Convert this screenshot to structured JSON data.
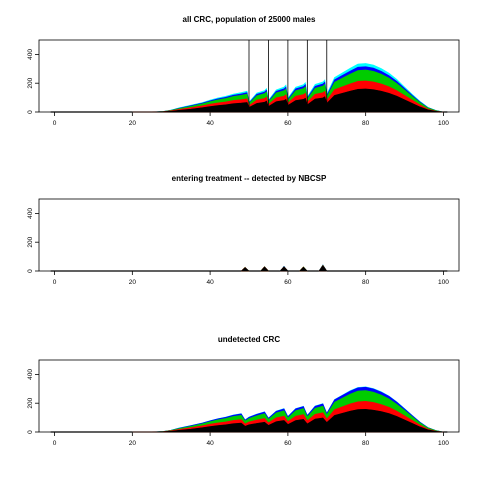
{
  "chart_data": [
    {
      "id": "all",
      "type": "area",
      "title": "all CRC, population of 25000 males",
      "xlabel": "",
      "ylabel": "",
      "xlim": [
        -4,
        104
      ],
      "ylim": [
        0,
        500
      ],
      "xticks": [
        0,
        20,
        40,
        60,
        80,
        100
      ],
      "yticks": [
        0,
        200,
        400
      ],
      "stacked": true,
      "colors": [
        "#000000",
        "#ff0000",
        "#00cc00",
        "#0000ff",
        "#00ffff"
      ],
      "x": [
        20,
        25,
        28,
        30,
        32,
        35,
        38,
        40,
        42,
        44,
        46,
        48,
        49.5,
        50,
        52,
        54,
        54.5,
        55,
        57,
        59,
        59.5,
        60,
        62,
        64,
        64.5,
        65,
        67,
        69,
        69.5,
        70,
        72,
        74,
        76,
        78,
        80,
        82,
        84,
        86,
        88,
        90,
        92,
        94,
        96,
        98,
        100
      ],
      "series": [
        {
          "values": [
            0,
            0,
            2,
            6,
            12,
            20,
            30,
            38,
            45,
            50,
            58,
            62,
            66,
            32,
            60,
            68,
            76,
            38,
            72,
            80,
            88,
            46,
            80,
            88,
            96,
            50,
            90,
            98,
            106,
            60,
            115,
            130,
            145,
            158,
            160,
            155,
            145,
            130,
            110,
            85,
            60,
            35,
            15,
            5,
            0
          ]
        },
        {
          "values": [
            0,
            0,
            1,
            3,
            6,
            10,
            13,
            16,
            18,
            20,
            22,
            24,
            26,
            12,
            23,
            26,
            28,
            14,
            27,
            30,
            32,
            16,
            30,
            33,
            35,
            18,
            33,
            36,
            38,
            20,
            40,
            45,
            50,
            55,
            56,
            54,
            50,
            45,
            38,
            30,
            22,
            14,
            6,
            2,
            0
          ]
        },
        {
          "values": [
            0,
            0,
            1,
            3,
            6,
            10,
            14,
            18,
            22,
            24,
            28,
            30,
            32,
            15,
            30,
            34,
            36,
            18,
            34,
            38,
            40,
            20,
            38,
            42,
            44,
            22,
            42,
            46,
            48,
            25,
            52,
            60,
            68,
            75,
            76,
            74,
            68,
            60,
            50,
            38,
            26,
            16,
            8,
            3,
            0
          ]
        },
        {
          "values": [
            0,
            0,
            0,
            1,
            3,
            4,
            5,
            6,
            7,
            8,
            9,
            10,
            11,
            5,
            10,
            11,
            12,
            6,
            11,
            13,
            14,
            7,
            13,
            14,
            15,
            8,
            14,
            15,
            16,
            9,
            17,
            19,
            21,
            23,
            23,
            22,
            20,
            18,
            15,
            11,
            8,
            5,
            2,
            1,
            0
          ]
        },
        {
          "values": [
            0,
            0,
            0,
            1,
            2,
            3,
            4,
            5,
            6,
            7,
            8,
            9,
            10,
            5,
            9,
            10,
            11,
            6,
            10,
            12,
            13,
            7,
            12,
            13,
            14,
            8,
            13,
            14,
            15,
            9,
            16,
            18,
            20,
            22,
            22,
            21,
            19,
            17,
            14,
            10,
            7,
            4,
            2,
            1,
            0
          ]
        }
      ],
      "vlines": [
        50,
        55,
        60,
        65,
        70
      ]
    },
    {
      "id": "treatment",
      "type": "area",
      "title": "entering treatment -- detected by NBCSP",
      "xlabel": "",
      "ylabel": "",
      "xlim": [
        -4,
        104
      ],
      "ylim": [
        0,
        500
      ],
      "xticks": [
        0,
        20,
        40,
        60,
        80,
        100
      ],
      "yticks": [
        0,
        200,
        400
      ],
      "stacked": true,
      "colors": [
        "#000000",
        "#ff0000",
        "#00cc00",
        "#0000ff",
        "#00ffff"
      ],
      "peaks": [
        {
          "x": 49,
          "values": [
            25,
            1,
            1,
            0,
            0
          ]
        },
        {
          "x": 54,
          "values": [
            30,
            1,
            1,
            0,
            0
          ]
        },
        {
          "x": 59,
          "values": [
            30,
            1,
            1,
            1,
            1
          ]
        },
        {
          "x": 64,
          "values": [
            28,
            1,
            1,
            0,
            0
          ]
        },
        {
          "x": 69,
          "values": [
            38,
            2,
            2,
            1,
            1
          ]
        }
      ]
    },
    {
      "id": "undetected",
      "type": "area",
      "title": "undetected  CRC",
      "xlabel": "",
      "ylabel": "",
      "xlim": [
        -4,
        104
      ],
      "ylim": [
        0,
        500
      ],
      "xticks": [
        0,
        20,
        40,
        60,
        80,
        100
      ],
      "yticks": [
        0,
        200,
        400
      ],
      "stacked": true,
      "colors": [
        "#000000",
        "#ff0000",
        "#00cc00",
        "#0000ff",
        "#00ffff"
      ],
      "x": [
        20,
        25,
        28,
        30,
        32,
        35,
        38,
        40,
        42,
        44,
        46,
        48,
        49,
        50,
        52,
        54,
        55,
        57,
        59,
        60,
        62,
        64,
        65,
        67,
        69,
        70,
        72,
        74,
        76,
        78,
        80,
        82,
        84,
        86,
        88,
        90,
        92,
        94,
        96,
        98,
        100
      ],
      "series": [
        {
          "values": [
            0,
            0,
            2,
            6,
            12,
            20,
            30,
            38,
            45,
            50,
            58,
            62,
            40,
            50,
            60,
            68,
            46,
            72,
            80,
            52,
            80,
            88,
            56,
            90,
            98,
            66,
            115,
            130,
            145,
            156,
            158,
            152,
            142,
            128,
            108,
            84,
            60,
            35,
            15,
            5,
            0
          ]
        },
        {
          "values": [
            0,
            0,
            1,
            3,
            6,
            10,
            13,
            16,
            18,
            20,
            22,
            24,
            16,
            20,
            23,
            26,
            18,
            27,
            30,
            20,
            30,
            33,
            22,
            33,
            36,
            24,
            40,
            45,
            50,
            54,
            55,
            53,
            49,
            44,
            37,
            29,
            21,
            13,
            6,
            2,
            0
          ]
        },
        {
          "values": [
            0,
            0,
            1,
            3,
            6,
            10,
            14,
            18,
            22,
            24,
            28,
            30,
            20,
            24,
            30,
            34,
            24,
            34,
            38,
            26,
            38,
            42,
            28,
            42,
            46,
            30,
            52,
            60,
            68,
            74,
            75,
            72,
            66,
            58,
            48,
            37,
            25,
            15,
            8,
            3,
            0
          ]
        },
        {
          "values": [
            0,
            0,
            0,
            1,
            3,
            4,
            5,
            6,
            7,
            8,
            9,
            10,
            7,
            8,
            10,
            11,
            8,
            11,
            13,
            9,
            13,
            14,
            9,
            14,
            15,
            10,
            17,
            19,
            21,
            23,
            23,
            22,
            20,
            18,
            15,
            11,
            8,
            5,
            2,
            1,
            0
          ]
        },
        {
          "values": [
            0,
            0,
            0,
            0,
            1,
            1,
            1,
            1,
            1,
            2,
            2,
            2,
            1,
            2,
            2,
            2,
            1,
            2,
            2,
            1,
            2,
            2,
            1,
            2,
            2,
            1,
            2,
            2,
            3,
            3,
            3,
            3,
            3,
            2,
            2,
            2,
            1,
            1,
            0,
            0,
            0
          ]
        }
      ]
    }
  ]
}
